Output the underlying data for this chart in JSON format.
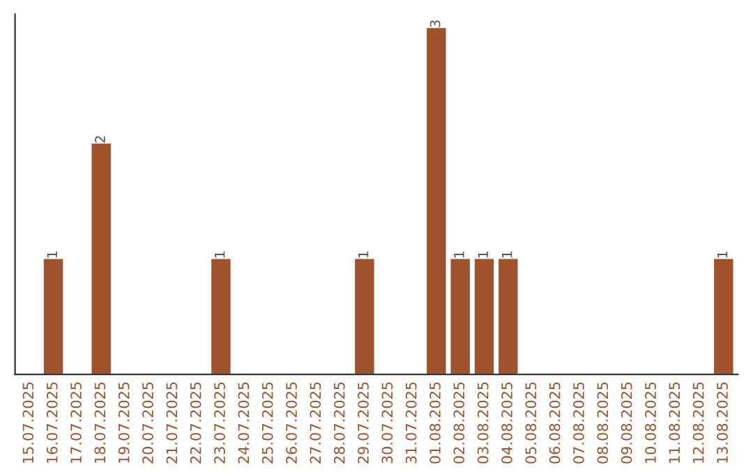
{
  "chart_data": {
    "type": "bar",
    "categories": [
      "15.07.2025",
      "16.07.2025",
      "17.07.2025",
      "18.07.2025",
      "19.07.2025",
      "20.07.2025",
      "21.07.2025",
      "22.07.2025",
      "23.07.2025",
      "24.07.2025",
      "25.07.2025",
      "26.07.2025",
      "27.07.2025",
      "28.07.2025",
      "29.07.2025",
      "30.07.2025",
      "31.07.2025",
      "01.08.2025",
      "02.08.2025",
      "03.08.2025",
      "04.08.2025",
      "05.08.2025",
      "06.08.2025",
      "07.08.2025",
      "08.08.2025",
      "09.08.2025",
      "10.08.2025",
      "11.08.2025",
      "12.08.2025",
      "13.08.2025"
    ],
    "values": [
      0,
      1,
      0,
      2,
      0,
      0,
      0,
      0,
      1,
      0,
      0,
      0,
      0,
      0,
      1,
      0,
      0,
      3,
      1,
      1,
      1,
      0,
      0,
      0,
      0,
      0,
      0,
      0,
      0,
      1
    ],
    "value_labels": [
      null,
      "1",
      null,
      "2",
      null,
      null,
      null,
      null,
      "1",
      null,
      null,
      null,
      null,
      null,
      "1",
      null,
      null,
      "3",
      "1",
      "1",
      "1",
      null,
      null,
      null,
      null,
      null,
      null,
      null,
      null,
      "1"
    ],
    "color": "#a0522d",
    "grid": false,
    "legend": false,
    "tick_labels": "x"
  }
}
